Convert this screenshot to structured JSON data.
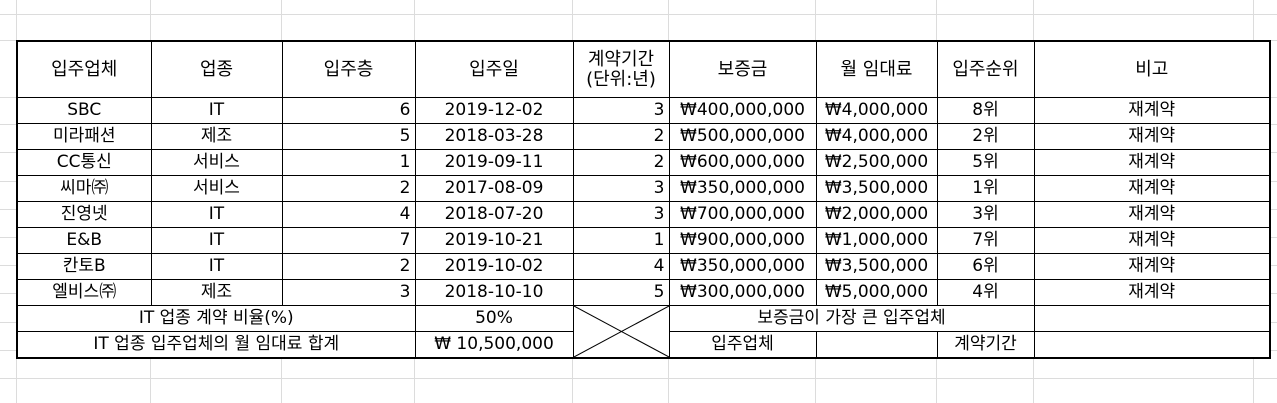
{
  "headers": [
    "입주업체",
    "업종",
    "입주층",
    "입주일",
    "계약기간",
    "(단위:년)",
    "보증금",
    "월 임대료",
    "입주순위",
    "비고"
  ],
  "rows": [
    {
      "company": "SBC",
      "industry": "IT",
      "floor": "6",
      "date": "2019-12-02",
      "period": "3",
      "deposit": "₩400,000,000",
      "rent": "₩4,000,000",
      "rank": "8위",
      "note": "재계약"
    },
    {
      "company": "미라패션",
      "industry": "제조",
      "floor": "5",
      "date": "2018-03-28",
      "period": "2",
      "deposit": "₩500,000,000",
      "rent": "₩4,000,000",
      "rank": "2위",
      "note": "재계약"
    },
    {
      "company": "CC통신",
      "industry": "서비스",
      "floor": "1",
      "date": "2019-09-11",
      "period": "2",
      "deposit": "₩600,000,000",
      "rent": "₩2,500,000",
      "rank": "5위",
      "note": "재계약"
    },
    {
      "company": "씨마㈜",
      "industry": "서비스",
      "floor": "2",
      "date": "2017-08-09",
      "period": "3",
      "deposit": "₩350,000,000",
      "rent": "₩3,500,000",
      "rank": "1위",
      "note": "재계약"
    },
    {
      "company": "진영넷",
      "industry": "IT",
      "floor": "4",
      "date": "2018-07-20",
      "period": "3",
      "deposit": "₩700,000,000",
      "rent": "₩2,000,000",
      "rank": "3위",
      "note": "재계약"
    },
    {
      "company": "E&B",
      "industry": "IT",
      "floor": "7",
      "date": "2019-10-21",
      "period": "1",
      "deposit": "₩900,000,000",
      "rent": "₩1,000,000",
      "rank": "7위",
      "note": "재계약"
    },
    {
      "company": "칸토B",
      "industry": "IT",
      "floor": "2",
      "date": "2019-10-02",
      "period": "4",
      "deposit": "₩350,000,000",
      "rent": "₩3,500,000",
      "rank": "6위",
      "note": "재계약"
    },
    {
      "company": "엘비스㈜",
      "industry": "제조",
      "floor": "3",
      "date": "2018-10-10",
      "period": "5",
      "deposit": "₩300,000,000",
      "rent": "₩5,000,000",
      "rank": "4위",
      "note": "재계약"
    }
  ],
  "summary": {
    "it_ratio_label": "IT 업종 계약 비율(%)",
    "it_ratio_value": "50%",
    "max_deposit_label": "보증금이 가장 큰 입주업체",
    "it_rent_label": "IT 업종 입주업체의 월 임대료 합계",
    "it_rent_value": "₩ 10,500,000",
    "company_label": "입주업체",
    "period_label": "계약기간"
  }
}
